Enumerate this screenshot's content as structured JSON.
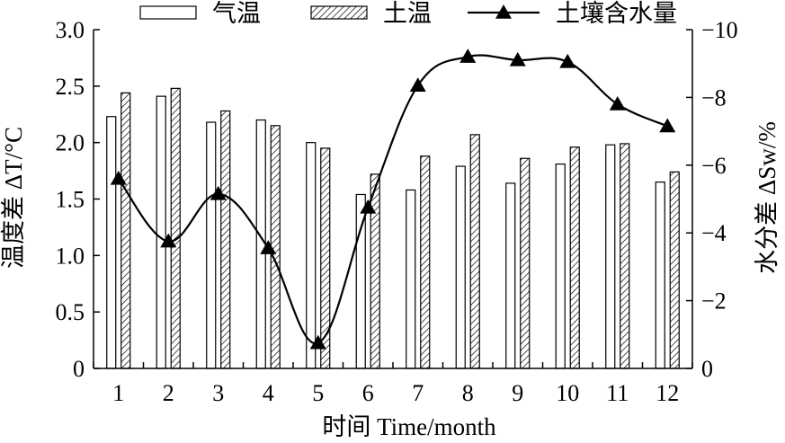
{
  "chart_data": {
    "type": "bar",
    "categories": [
      "1",
      "2",
      "3",
      "4",
      "5",
      "6",
      "7",
      "8",
      "9",
      "10",
      "11",
      "12"
    ],
    "series": [
      {
        "name": "气温",
        "kind": "bar",
        "pattern": "open",
        "axis": "left",
        "values": [
          2.23,
          2.41,
          2.18,
          2.2,
          2.0,
          1.54,
          1.58,
          1.79,
          1.64,
          1.81,
          1.98,
          1.65
        ]
      },
      {
        "name": "土温",
        "kind": "bar",
        "pattern": "hatched",
        "axis": "left",
        "values": [
          2.44,
          2.48,
          2.28,
          2.15,
          1.95,
          1.72,
          1.88,
          2.07,
          1.86,
          1.96,
          1.99,
          1.74
        ]
      },
      {
        "name": "土壤含水量",
        "kind": "line",
        "marker": "triangle",
        "axis": "right",
        "values": [
          -5.6,
          -3.75,
          -5.15,
          -3.55,
          -0.75,
          -4.75,
          -8.35,
          -9.2,
          -9.1,
          -9.05,
          -7.8,
          -7.15
        ]
      }
    ],
    "xlabel": "时间 Time/month",
    "ylabel_left": "温度差 ΔT/°C",
    "ylabel_right": "水分差 ΔSw/%",
    "ylim_left": [
      0,
      3.0
    ],
    "yticks_left": [
      "0",
      "0.5",
      "1.0",
      "1.5",
      "2.0",
      "2.5",
      "3.0"
    ],
    "ylim_right": [
      0,
      -10
    ],
    "yticks_right": [
      "0",
      "−2",
      "−4",
      "−6",
      "−8",
      "−10"
    ],
    "legend_position": "top",
    "grid": false
  }
}
